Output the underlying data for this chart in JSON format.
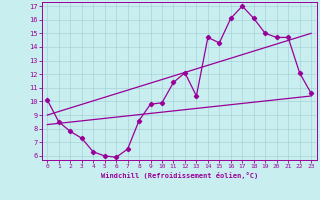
{
  "xlabel": "Windchill (Refroidissement éolien,°C)",
  "bg_color": "#c8eef0",
  "line_color": "#990099",
  "xlim": [
    -0.5,
    23.5
  ],
  "ylim": [
    5.7,
    17.3
  ],
  "xticks": [
    0,
    1,
    2,
    3,
    4,
    5,
    6,
    7,
    8,
    9,
    10,
    11,
    12,
    13,
    14,
    15,
    16,
    17,
    18,
    19,
    20,
    21,
    22,
    23
  ],
  "yticks": [
    6,
    7,
    8,
    9,
    10,
    11,
    12,
    13,
    14,
    15,
    16,
    17
  ],
  "line1_x": [
    0,
    1,
    2,
    3,
    4,
    5,
    6,
    7,
    8,
    9,
    10,
    11,
    12,
    13,
    14,
    15,
    16,
    17,
    18,
    19,
    20,
    21,
    22,
    23
  ],
  "line1_y": [
    10.1,
    8.5,
    7.8,
    7.3,
    6.3,
    6.0,
    5.9,
    6.5,
    8.6,
    9.8,
    9.9,
    11.4,
    12.1,
    10.4,
    14.7,
    14.3,
    16.1,
    17.0,
    16.1,
    15.0,
    14.7,
    14.7,
    12.1,
    10.6
  ],
  "line2_x": [
    0,
    23
  ],
  "line2_y": [
    8.3,
    10.4
  ],
  "line3_x": [
    0,
    23
  ],
  "line3_y": [
    9.0,
    15.0
  ]
}
